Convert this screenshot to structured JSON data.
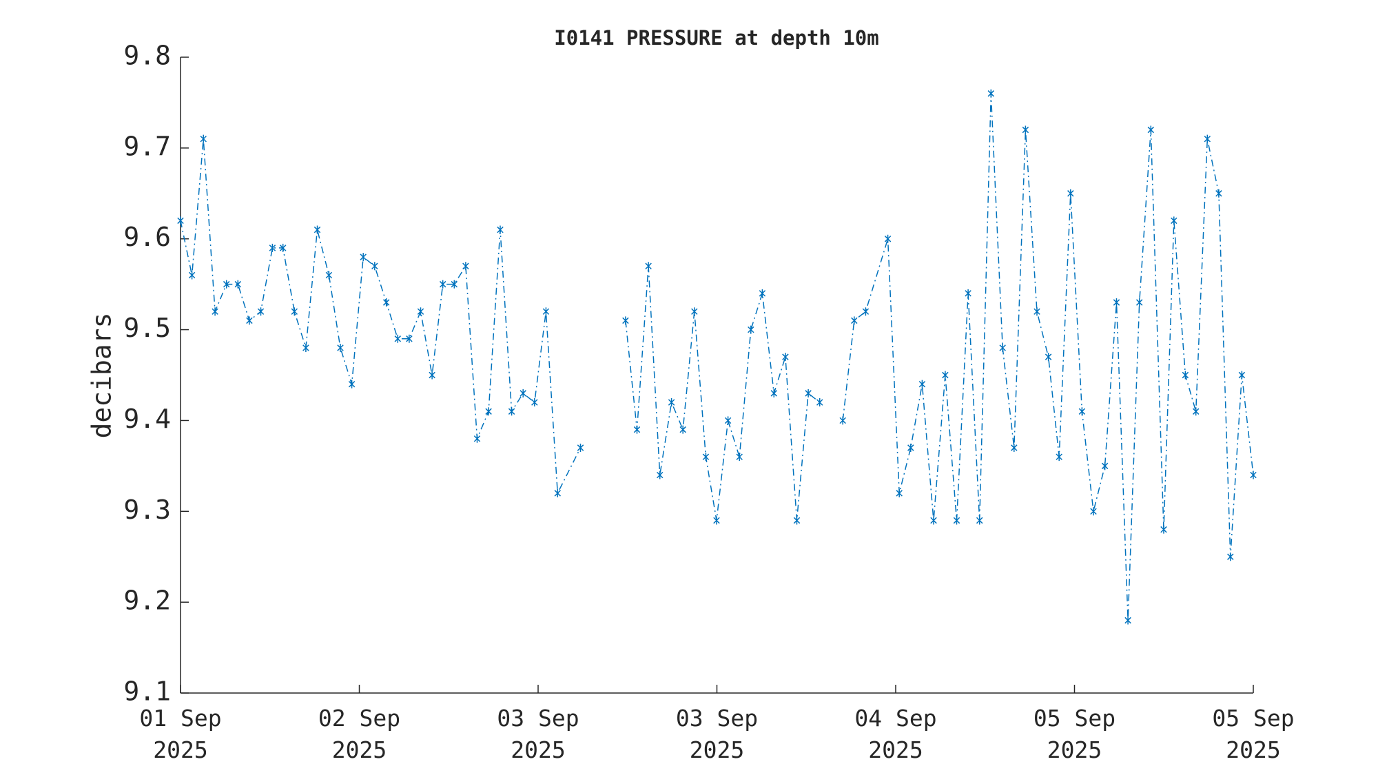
{
  "chart_data": {
    "type": "line",
    "title": "I0141 PRESSURE at depth 10m",
    "ylabel": "decibars",
    "xlim": [
      0,
      6
    ],
    "ylim": [
      9.1,
      9.8
    ],
    "xticks": [
      {
        "value": 0,
        "label": "01 Sep\n2025"
      },
      {
        "value": 1,
        "label": "02 Sep\n2025"
      },
      {
        "value": 2,
        "label": "03 Sep\n2025"
      },
      {
        "value": 3,
        "label": "03 Sep\n2025"
      },
      {
        "value": 4,
        "label": "04 Sep\n2025"
      },
      {
        "value": 5,
        "label": "05 Sep\n2025"
      },
      {
        "value": 6,
        "label": "05 Sep\n2025"
      }
    ],
    "yticks": [
      9.1,
      9.2,
      9.3,
      9.4,
      9.5,
      9.6,
      9.7,
      9.8
    ],
    "grid": false,
    "series": [
      {
        "color": "#0072bd",
        "x": [
          0,
          0.064,
          0.128,
          0.193,
          0.257,
          0.321,
          0.385,
          0.449,
          0.514,
          0.573,
          0.637,
          0.701,
          0.765,
          0.83,
          0.894,
          0.958,
          1.022,
          1.086,
          1.151,
          1.215,
          1.279,
          1.343,
          1.407,
          1.467,
          1.531,
          1.595,
          1.659,
          1.723,
          1.788,
          1.852,
          1.916,
          1.98,
          2.044,
          2.109,
          2.237,
          2.365,
          2.489,
          2.553,
          2.617,
          2.681,
          2.746,
          2.81,
          2.874,
          2.938,
          2.998,
          3.062,
          3.126,
          3.19,
          3.254,
          3.319,
          3.383,
          3.447,
          3.511,
          3.575,
          3.64,
          3.704,
          3.768,
          3.832,
          3.956,
          4.02,
          4.084,
          4.148,
          4.212,
          4.277,
          4.341,
          4.405,
          4.469,
          4.533,
          4.598,
          4.662,
          4.726,
          4.79,
          4.854,
          4.914,
          4.978,
          5.042,
          5.106,
          5.17,
          5.235,
          5.299,
          5.363,
          5.427,
          5.499,
          5.556,
          5.62,
          5.679,
          5.743,
          5.807,
          5.872,
          5.936,
          6
        ],
        "values": [
          9.62,
          9.56,
          9.71,
          9.52,
          9.55,
          9.55,
          9.51,
          9.52,
          9.59,
          9.59,
          9.52,
          9.48,
          9.61,
          9.56,
          9.48,
          9.44,
          9.58,
          9.57,
          9.53,
          9.49,
          9.49,
          9.52,
          9.45,
          9.55,
          9.55,
          9.57,
          9.38,
          9.41,
          9.61,
          9.41,
          9.43,
          9.42,
          9.52,
          9.32,
          9.37,
          null,
          9.51,
          9.39,
          9.57,
          9.34,
          9.42,
          9.39,
          9.52,
          9.36,
          9.29,
          9.4,
          9.36,
          9.5,
          9.54,
          9.43,
          9.47,
          9.29,
          9.43,
          9.42,
          null,
          9.4,
          9.51,
          9.52,
          9.6,
          9.32,
          9.37,
          9.44,
          9.29,
          9.45,
          9.29,
          9.54,
          9.29,
          9.76,
          9.48,
          9.37,
          9.72,
          9.52,
          9.47,
          9.36,
          9.65,
          9.41,
          9.3,
          9.35,
          9.53,
          9.18,
          9.53,
          9.72,
          9.28,
          9.62,
          9.45,
          9.41,
          9.71,
          9.65,
          9.25,
          9.45,
          9.34
        ]
      }
    ]
  }
}
